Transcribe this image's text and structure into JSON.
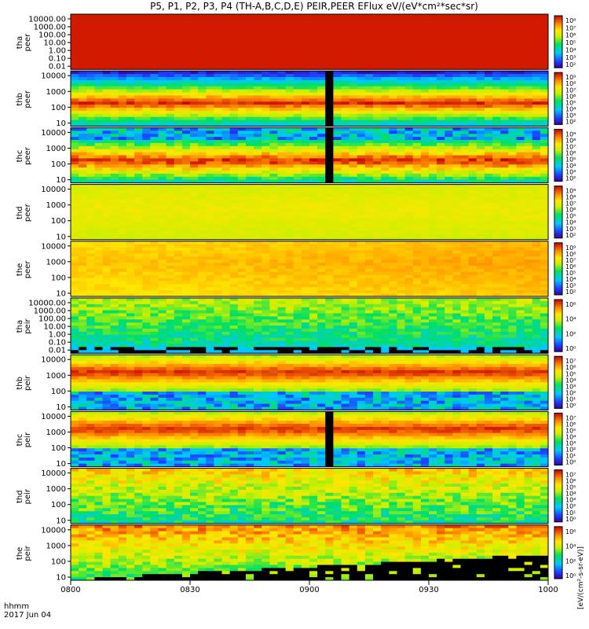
{
  "chart_data": {
    "type": "heatmap",
    "title": "P5, P1, P2, P3, P4 (TH-A,B,C,D,E) PEIR,PEER EFlux eV/(eV*cm²*sec*sr)",
    "colorbar_label": "[eV/(cm²-s-sr-eV)]",
    "x_axis": {
      "ticks": [
        "0800",
        "0830",
        "0900",
        "0930",
        "1000"
      ],
      "tick_hours": [
        8.0,
        8.5,
        9.0,
        9.5,
        10.0
      ],
      "range_hours": [
        8.0,
        10.0
      ],
      "label_line1": "hhmm",
      "label_line2": "2017 Jun 04"
    },
    "energy_scale": "log",
    "panels": [
      {
        "probe": "tha",
        "species": "peer",
        "ylabel": [
          "tha",
          "peer"
        ],
        "yticks": [
          "10000.00",
          "1000.00",
          "100.00",
          "10.00",
          "1.00",
          "0.10",
          "0.01"
        ],
        "ylim": [
          0.01,
          30000
        ],
        "cbar_ticks": [
          "10⁸",
          "10⁷",
          "10⁶",
          "10⁵",
          "10⁴",
          "10³",
          "10²"
        ],
        "data_gap": null,
        "spectrum": "core"
      },
      {
        "probe": "thb",
        "species": "peer",
        "ylabel": [
          "thb",
          "peer"
        ],
        "yticks": [
          "10000",
          "1000",
          "100",
          "10"
        ],
        "ylim": [
          7,
          30000
        ],
        "cbar_ticks": [
          "10⁹",
          "10⁸",
          "10⁷",
          "10⁶",
          "10⁵",
          "10⁴",
          "10³",
          "10²"
        ],
        "data_gap": [
          9.05,
          9.1
        ],
        "spectrum": "peak"
      },
      {
        "probe": "thc",
        "species": "peer",
        "ylabel": [
          "thc",
          "peer"
        ],
        "yticks": [
          "10000",
          "1000",
          "100",
          "10"
        ],
        "ylim": [
          7,
          30000
        ],
        "cbar_ticks": [
          "10⁹",
          "10⁸",
          "10⁷",
          "10⁶",
          "10⁵",
          "10⁴",
          "10³",
          "10²"
        ],
        "data_gap": [
          9.05,
          9.1
        ],
        "spectrum": "peak_noisy"
      },
      {
        "probe": "thd",
        "species": "peer",
        "ylabel": [
          "thd",
          "peer"
        ],
        "yticks": [
          "10000",
          "1000",
          "100",
          "10"
        ],
        "ylim": [
          7,
          30000
        ],
        "cbar_ticks": [
          "10⁹",
          "10⁸",
          "10⁷",
          "10⁶",
          "10⁵",
          "10⁴",
          "10³",
          "10²"
        ],
        "data_gap": null,
        "spectrum": "flat_yellow"
      },
      {
        "probe": "the",
        "species": "peer",
        "ylabel": [
          "the",
          "peer"
        ],
        "yticks": [
          "10000",
          "1000",
          "100",
          "10"
        ],
        "ylim": [
          7,
          30000
        ],
        "cbar_ticks": [
          "10⁹",
          "10⁸",
          "10⁷",
          "10⁶",
          "10⁵",
          "10⁴",
          "10³",
          "10²"
        ],
        "data_gap": null,
        "spectrum": "flat_orange"
      },
      {
        "probe": "tha",
        "species": "peir",
        "ylabel": [
          "tha",
          "peir"
        ],
        "yticks": [
          "10000.00",
          "1000.00",
          "100.00",
          "10.00",
          "1.00",
          "0.10",
          "0.01"
        ],
        "ylim": [
          0.01,
          30000
        ],
        "cbar_ticks": [
          "10⁶",
          "10⁴",
          "10²",
          "10⁰"
        ],
        "data_gap": null,
        "spectrum": "ion_low"
      },
      {
        "probe": "thb",
        "species": "peir",
        "ylabel": [
          "thb",
          "peir"
        ],
        "yticks": [
          "10000",
          "1000",
          "100",
          "10"
        ],
        "ylim": [
          7,
          30000
        ],
        "cbar_ticks": [
          "10⁷",
          "10⁶",
          "10⁵",
          "10⁴",
          "10³",
          "10²",
          "10¹",
          "10⁰"
        ],
        "data_gap": null,
        "spectrum": "ion_peak"
      },
      {
        "probe": "thc",
        "species": "peir",
        "ylabel": [
          "thc",
          "peir"
        ],
        "yticks": [
          "10000",
          "1000",
          "100",
          "10"
        ],
        "ylim": [
          7,
          30000
        ],
        "cbar_ticks": [
          "10⁷",
          "10⁶",
          "10⁵",
          "10⁴",
          "10³",
          "10²",
          "10¹",
          "10⁰"
        ],
        "data_gap": [
          9.05,
          9.1
        ],
        "spectrum": "ion_peak"
      },
      {
        "probe": "thd",
        "species": "peir",
        "ylabel": [
          "thd",
          "peir"
        ],
        "yticks": [
          "10000",
          "1000",
          "100",
          "10"
        ],
        "ylim": [
          7,
          30000
        ],
        "cbar_ticks": [
          "10⁷",
          "10⁶",
          "10⁵",
          "10⁴",
          "10³",
          "10²",
          "10¹",
          "10⁰"
        ],
        "data_gap": null,
        "spectrum": "ion_green"
      },
      {
        "probe": "the",
        "species": "peir",
        "ylabel": [
          "the",
          "peir"
        ],
        "yticks": [
          "10000",
          "1000",
          "100",
          "10"
        ],
        "ylim": [
          7,
          30000
        ],
        "cbar_ticks": [
          "10⁶",
          "10⁴",
          "10²",
          "10⁰"
        ],
        "data_gap": null,
        "spectrum": "ion_wedge"
      }
    ]
  }
}
